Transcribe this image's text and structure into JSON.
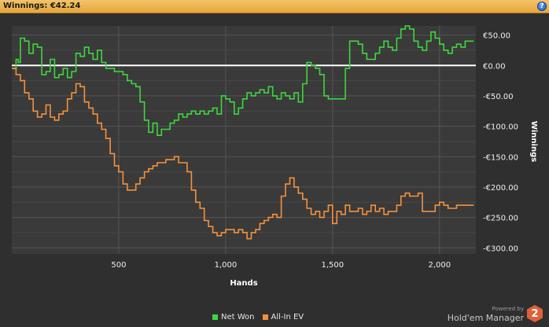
{
  "window": {
    "title": "Winnings: €42.24",
    "help_icon": "help-icon",
    "help_glyph": "?"
  },
  "brand": {
    "powered_by": "Powered by",
    "name": "Hold'em Manager",
    "logo_glyph": "2",
    "logo_color": "#e0603a"
  },
  "chart_data": {
    "type": "line",
    "xlabel": "Hands",
    "ylabel": "Winnings",
    "xlim": [
      0,
      2170
    ],
    "ylim": [
      -310,
      65
    ],
    "x_ticks": [
      500,
      1000,
      1500,
      2000
    ],
    "x_tick_labels": [
      "500",
      "1,000",
      "1,500",
      "2,000"
    ],
    "y_ticks": [
      50,
      0,
      -50,
      -100,
      -150,
      -200,
      -250,
      -300
    ],
    "y_tick_labels": [
      "€50.00",
      "€0.00",
      "-€50.00",
      "-€100.00",
      "-€150.00",
      "-€200.00",
      "-€250.00",
      "-€300.00"
    ],
    "y_axis_side": "right",
    "grid": true,
    "zero_line": true,
    "legend_position": "bottom-center",
    "background": "#3a3a3a",
    "series": [
      {
        "name": "Net Won",
        "color": "#3ed63e",
        "points": [
          [
            0,
            -5
          ],
          [
            20,
            10
          ],
          [
            30,
            5
          ],
          [
            40,
            45
          ],
          [
            60,
            40
          ],
          [
            80,
            20
          ],
          [
            100,
            35
          ],
          [
            120,
            30
          ],
          [
            140,
            -15
          ],
          [
            160,
            -10
          ],
          [
            180,
            10
          ],
          [
            200,
            -20
          ],
          [
            220,
            -15
          ],
          [
            240,
            -5
          ],
          [
            260,
            -20
          ],
          [
            280,
            -10
          ],
          [
            300,
            20
          ],
          [
            320,
            15
          ],
          [
            340,
            30
          ],
          [
            360,
            20
          ],
          [
            380,
            10
          ],
          [
            400,
            25
          ],
          [
            420,
            5
          ],
          [
            440,
            -5
          ],
          [
            460,
            -5
          ],
          [
            480,
            -10
          ],
          [
            500,
            -10
          ],
          [
            520,
            -15
          ],
          [
            540,
            -25
          ],
          [
            560,
            -30
          ],
          [
            580,
            -35
          ],
          [
            600,
            -60
          ],
          [
            620,
            -90
          ],
          [
            640,
            -110
          ],
          [
            660,
            -95
          ],
          [
            680,
            -115
          ],
          [
            700,
            -105
          ],
          [
            720,
            -105
          ],
          [
            740,
            -95
          ],
          [
            760,
            -90
          ],
          [
            780,
            -80
          ],
          [
            800,
            -85
          ],
          [
            820,
            -80
          ],
          [
            840,
            -75
          ],
          [
            860,
            -80
          ],
          [
            880,
            -75
          ],
          [
            900,
            -80
          ],
          [
            920,
            -75
          ],
          [
            940,
            -70
          ],
          [
            960,
            -80
          ],
          [
            980,
            -50
          ],
          [
            1000,
            -55
          ],
          [
            1020,
            -60
          ],
          [
            1040,
            -80
          ],
          [
            1060,
            -70
          ],
          [
            1080,
            -55
          ],
          [
            1100,
            -45
          ],
          [
            1120,
            -50
          ],
          [
            1140,
            -45
          ],
          [
            1160,
            -40
          ],
          [
            1180,
            -45
          ],
          [
            1200,
            -35
          ],
          [
            1220,
            -50
          ],
          [
            1240,
            -55
          ],
          [
            1260,
            -45
          ],
          [
            1280,
            -50
          ],
          [
            1300,
            -55
          ],
          [
            1320,
            -45
          ],
          [
            1340,
            -60
          ],
          [
            1360,
            -30
          ],
          [
            1380,
            5
          ],
          [
            1400,
            0
          ],
          [
            1420,
            -5
          ],
          [
            1440,
            -15
          ],
          [
            1460,
            -50
          ],
          [
            1480,
            -55
          ],
          [
            1500,
            -55
          ],
          [
            1520,
            -55
          ],
          [
            1540,
            -55
          ],
          [
            1560,
            -5
          ],
          [
            1580,
            40
          ],
          [
            1600,
            40
          ],
          [
            1620,
            35
          ],
          [
            1640,
            20
          ],
          [
            1660,
            10
          ],
          [
            1680,
            10
          ],
          [
            1700,
            20
          ],
          [
            1720,
            30
          ],
          [
            1740,
            40
          ],
          [
            1760,
            30
          ],
          [
            1780,
            25
          ],
          [
            1800,
            45
          ],
          [
            1820,
            60
          ],
          [
            1840,
            65
          ],
          [
            1860,
            60
          ],
          [
            1880,
            40
          ],
          [
            1900,
            30
          ],
          [
            1920,
            25
          ],
          [
            1940,
            40
          ],
          [
            1960,
            55
          ],
          [
            1980,
            45
          ],
          [
            2000,
            35
          ],
          [
            2020,
            25
          ],
          [
            2040,
            20
          ],
          [
            2060,
            30
          ],
          [
            2080,
            35
          ],
          [
            2100,
            30
          ],
          [
            2120,
            40
          ],
          [
            2140,
            40
          ],
          [
            2160,
            40
          ]
        ]
      },
      {
        "name": "All-In EV",
        "color": "#f5913c",
        "points": [
          [
            0,
            -5
          ],
          [
            20,
            -15
          ],
          [
            40,
            -25
          ],
          [
            60,
            -45
          ],
          [
            80,
            -55
          ],
          [
            100,
            -75
          ],
          [
            120,
            -85
          ],
          [
            140,
            -80
          ],
          [
            160,
            -65
          ],
          [
            180,
            -85
          ],
          [
            200,
            -90
          ],
          [
            220,
            -80
          ],
          [
            240,
            -75
          ],
          [
            260,
            -55
          ],
          [
            280,
            -45
          ],
          [
            300,
            -30
          ],
          [
            320,
            -35
          ],
          [
            340,
            -60
          ],
          [
            360,
            -70
          ],
          [
            380,
            -80
          ],
          [
            400,
            -95
          ],
          [
            420,
            -105
          ],
          [
            440,
            -120
          ],
          [
            460,
            -145
          ],
          [
            480,
            -165
          ],
          [
            500,
            -175
          ],
          [
            520,
            -195
          ],
          [
            540,
            -205
          ],
          [
            560,
            -205
          ],
          [
            580,
            -195
          ],
          [
            600,
            -185
          ],
          [
            620,
            -175
          ],
          [
            640,
            -170
          ],
          [
            660,
            -165
          ],
          [
            680,
            -160
          ],
          [
            700,
            -160
          ],
          [
            720,
            -155
          ],
          [
            740,
            -155
          ],
          [
            760,
            -150
          ],
          [
            780,
            -160
          ],
          [
            800,
            -160
          ],
          [
            820,
            -175
          ],
          [
            840,
            -205
          ],
          [
            860,
            -225
          ],
          [
            880,
            -235
          ],
          [
            900,
            -255
          ],
          [
            920,
            -265
          ],
          [
            940,
            -275
          ],
          [
            960,
            -280
          ],
          [
            980,
            -275
          ],
          [
            1000,
            -270
          ],
          [
            1020,
            -270
          ],
          [
            1040,
            -275
          ],
          [
            1060,
            -270
          ],
          [
            1080,
            -275
          ],
          [
            1100,
            -285
          ],
          [
            1120,
            -275
          ],
          [
            1140,
            -270
          ],
          [
            1160,
            -260
          ],
          [
            1180,
            -255
          ],
          [
            1200,
            -250
          ],
          [
            1220,
            -245
          ],
          [
            1240,
            -250
          ],
          [
            1260,
            -215
          ],
          [
            1280,
            -195
          ],
          [
            1300,
            -185
          ],
          [
            1320,
            -200
          ],
          [
            1340,
            -210
          ],
          [
            1360,
            -220
          ],
          [
            1380,
            -235
          ],
          [
            1400,
            -245
          ],
          [
            1420,
            -240
          ],
          [
            1440,
            -250
          ],
          [
            1460,
            -240
          ],
          [
            1480,
            -230
          ],
          [
            1500,
            -260
          ],
          [
            1520,
            -240
          ],
          [
            1540,
            -245
          ],
          [
            1560,
            -230
          ],
          [
            1580,
            -240
          ],
          [
            1600,
            -240
          ],
          [
            1620,
            -235
          ],
          [
            1640,
            -245
          ],
          [
            1660,
            -240
          ],
          [
            1680,
            -230
          ],
          [
            1700,
            -240
          ],
          [
            1720,
            -235
          ],
          [
            1740,
            -245
          ],
          [
            1760,
            -240
          ],
          [
            1780,
            -240
          ],
          [
            1800,
            -230
          ],
          [
            1820,
            -215
          ],
          [
            1840,
            -210
          ],
          [
            1860,
            -215
          ],
          [
            1880,
            -215
          ],
          [
            1900,
            -210
          ],
          [
            1920,
            -240
          ],
          [
            1940,
            -240
          ],
          [
            1960,
            -240
          ],
          [
            1980,
            -230
          ],
          [
            2000,
            -225
          ],
          [
            2020,
            -230
          ],
          [
            2040,
            -235
          ],
          [
            2060,
            -235
          ],
          [
            2080,
            -230
          ],
          [
            2100,
            -230
          ],
          [
            2120,
            -230
          ],
          [
            2140,
            -230
          ],
          [
            2160,
            -230
          ]
        ]
      }
    ]
  }
}
